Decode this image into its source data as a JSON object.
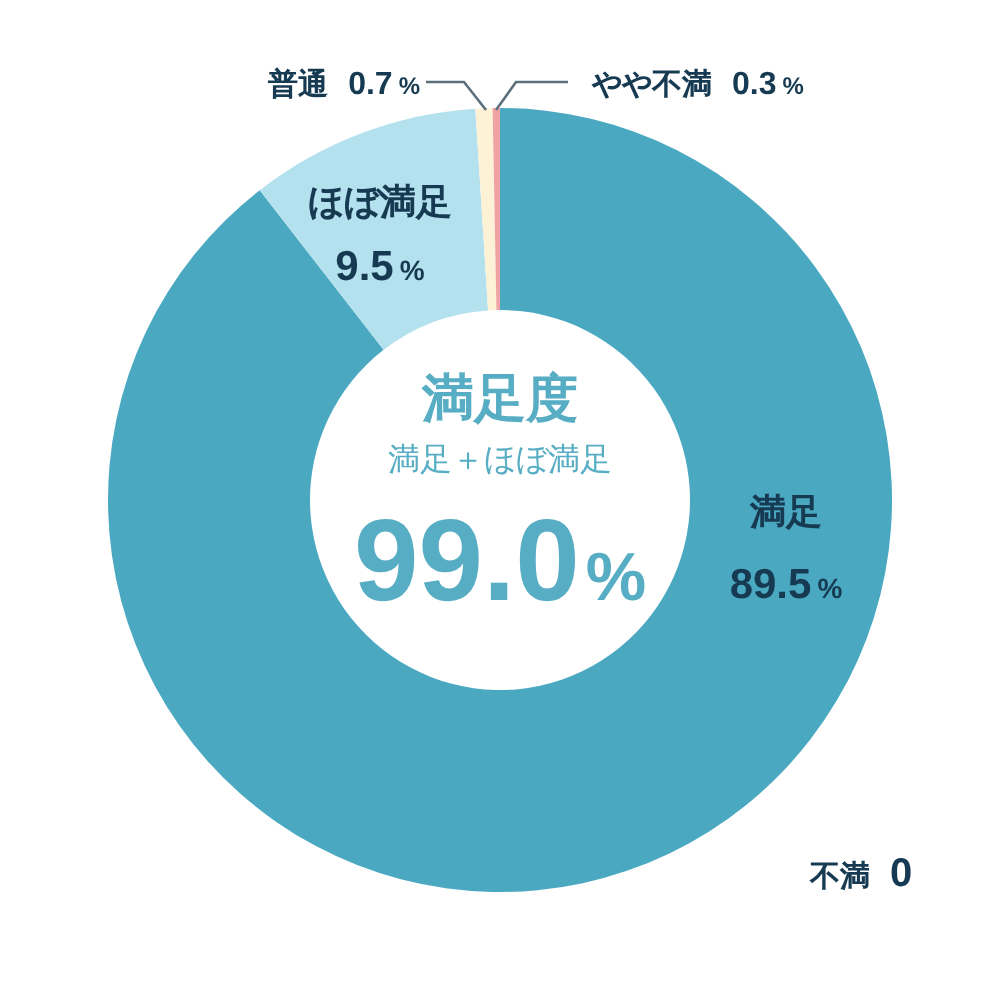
{
  "chart_data": {
    "type": "donut",
    "categories": [
      "満足",
      "ほぼ満足",
      "普通",
      "やや不満",
      "不満"
    ],
    "values": [
      89.5,
      9.5,
      0.7,
      0.3,
      0
    ],
    "colors": [
      "#4aa9c1",
      "#b4e1ee",
      "#fdf1d6",
      "#f0a3a3",
      "#d97b7b"
    ],
    "value_labels": [
      "89.5%",
      "9.5%",
      "0.7%",
      "0.3%",
      "0"
    ],
    "annotations": [
      "満足度",
      "満足＋ほぼ満足",
      "99.0%"
    ]
  }
}
